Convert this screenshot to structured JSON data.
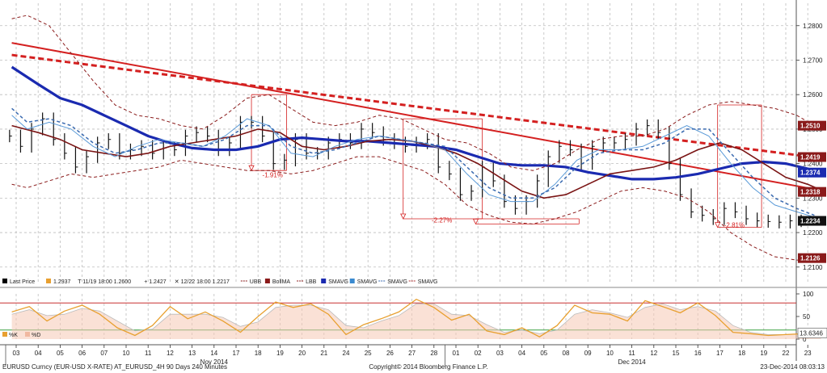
{
  "chart_data": {
    "type": "line",
    "footer": {
      "left": "EURUSD Curncy (EUR-USD X-RATE) AT_EURUSD_4H 90 Days 240 Minutes",
      "center": "Copyright© 2014 Bloomberg Finance L.P.",
      "right": "23-Dec-2014 08:03:13"
    },
    "legend": [
      {
        "label": "Last Price",
        "color": "#000000",
        "swatch": "box"
      },
      {
        "label": "1.2937",
        "color": "#e8a030",
        "swatch": "box"
      },
      {
        "label": "T 11/19 18:00 1.2600",
        "color": "#000000",
        "swatch": "text"
      },
      {
        "label": "+ 1.2427",
        "color": "#000000",
        "swatch": "text"
      },
      {
        "label": "✕ 12/22 18:00 1.2217",
        "color": "#000000",
        "swatch": "text"
      },
      {
        "label": "UBB",
        "color": "#8a1a1a",
        "swatch": "dash"
      },
      {
        "label": "BollMA",
        "color": "#8a1a1a",
        "swatch": "box"
      },
      {
        "label": "LBB",
        "color": "#8a1a1a",
        "swatch": "dash"
      },
      {
        "label": "SMAVG",
        "color": "#1a2ab0",
        "swatch": "box"
      },
      {
        "label": "SMAVG",
        "color": "#3a8ad0",
        "swatch": "box"
      },
      {
        "label": "SMAVG",
        "color": "#3a6ab0",
        "swatch": "dash"
      },
      {
        "label": "SMAVG",
        "color": "#b03030",
        "swatch": "dash"
      }
    ],
    "x_ticks": [
      "03",
      "04",
      "05",
      "06",
      "07",
      "10",
      "11",
      "12",
      "13",
      "14",
      "17",
      "18",
      "19",
      "20",
      "21",
      "24",
      "25",
      "26",
      "27",
      "28",
      "01",
      "02",
      "03",
      "04",
      "05",
      "08",
      "09",
      "10",
      "11",
      "12",
      "15",
      "16",
      "17",
      "18",
      "19",
      "22",
      "23"
    ],
    "x_month_labels": [
      {
        "text": "Nov 2014",
        "tick_index": 9
      },
      {
        "text": "Dec 2014",
        "tick_index": 28
      }
    ],
    "y_ticks": [
      "1.2800",
      "1.2700",
      "1.2600",
      "1.2500",
      "1.2400",
      "1.2300",
      "1.2200",
      "1.2100"
    ],
    "ylim": [
      1.2055,
      1.2865
    ],
    "price_tags": [
      {
        "text": "1.2510",
        "value": 1.251,
        "color": "#8a1a1a"
      },
      {
        "text": "1.2419",
        "value": 1.2419,
        "color": "#8a1a1a"
      },
      {
        "text": "1.2374",
        "value": 1.2374,
        "color": "#1a2ab0"
      },
      {
        "text": "1.2318",
        "value": 1.2318,
        "color": "#8a1a1a"
      },
      {
        "text": "1.2234",
        "value": 1.2234,
        "color": "#111111"
      },
      {
        "text": "1.2126",
        "value": 1.2126,
        "color": "#8a1a1a"
      }
    ],
    "annotations": [
      {
        "text": "-1.91%",
        "x": 12.3,
        "y": 1.2367
      },
      {
        "text": "-2.27%",
        "x": 20.0,
        "y": 1.2237
      },
      {
        "text": "-2.81%",
        "x": 33.3,
        "y": 1.2222
      }
    ],
    "measure_boxes": [
      {
        "x0": 10.7,
        "x1": 12.3,
        "y_top": 1.26,
        "y_bottom": 1.238
      },
      {
        "x0": 17.6,
        "x1": 21.2,
        "y_top": 1.253,
        "y_bottom": 1.224
      },
      {
        "x0": 20.9,
        "x1": 25.6,
        "y_top": 1.224,
        "y_bottom": 1.2225
      },
      {
        "x0": 31.9,
        "x1": 33.9,
        "y_top": 1.257,
        "y_bottom": 1.2215
      }
    ],
    "trendlines": [
      {
        "kind": "solid",
        "x": [
          -0.2,
          36.8
        ],
        "y": [
          1.275,
          1.232
        ],
        "color": "#d42020"
      },
      {
        "kind": "dashed",
        "x": [
          -0.2,
          36.7
        ],
        "y": [
          1.2715,
          1.2415
        ],
        "color": "#d42020"
      }
    ],
    "series": [
      {
        "kind": "ohlc",
        "color": "#111111",
        "x": [
          -0.3,
          0.2,
          0.7,
          1.2,
          1.7,
          2.2,
          2.7,
          3.2,
          3.7,
          4.2,
          4.7,
          5.2,
          5.7,
          6.2,
          6.7,
          7.2,
          7.7,
          8.2,
          8.7,
          9.2,
          9.7,
          10.2,
          10.7,
          11.2,
          11.7,
          12.2,
          12.7,
          13.2,
          13.7,
          14.2,
          14.7,
          15.2,
          15.7,
          16.2,
          16.7,
          17.2,
          17.7,
          18.2,
          18.7,
          19.2,
          19.7,
          20.2,
          20.7,
          21.2,
          21.7,
          22.2,
          22.7,
          23.2,
          23.7,
          24.2,
          24.7,
          25.2,
          25.7,
          26.2,
          26.7,
          27.2,
          27.7,
          28.2,
          28.7,
          29.2,
          29.7,
          30.2,
          30.7,
          31.2,
          31.7,
          32.2,
          32.7,
          33.2,
          33.7,
          34.2,
          34.7,
          35.2,
          35.7
        ],
        "y": [
          1.248,
          1.245,
          1.25,
          1.253,
          1.247,
          1.243,
          1.239,
          1.242,
          1.246,
          1.247,
          1.243,
          1.244,
          1.245,
          1.243,
          1.2445,
          1.244,
          1.248,
          1.249,
          1.248,
          1.244,
          1.246,
          1.252,
          1.252,
          1.248,
          1.24,
          1.241,
          1.247,
          1.243,
          1.243,
          1.246,
          1.247,
          1.246,
          1.25,
          1.249,
          1.247,
          1.246,
          1.245,
          1.246,
          1.247,
          1.239,
          1.237,
          1.231,
          1.232,
          1.239,
          1.235,
          1.229,
          1.227,
          1.229,
          1.235,
          1.242,
          1.245,
          1.244,
          1.24,
          1.245,
          1.246,
          1.246,
          1.247,
          1.25,
          1.251,
          1.249,
          1.24,
          1.231,
          1.226,
          1.225,
          1.224,
          1.227,
          1.226,
          1.224,
          1.2234,
          1.2232,
          1.223,
          1.2234,
          1.2234
        ]
      },
      {
        "kind": "line",
        "name": "",
        "color": "#1a2ab0",
        "width": 3.2,
        "x": [
          -0.2,
          1,
          2,
          3,
          4,
          5,
          6,
          7,
          8,
          9,
          10,
          11,
          12,
          13,
          14,
          15,
          16,
          17,
          18,
          19,
          20,
          21,
          22,
          23,
          24,
          25,
          26,
          27,
          28,
          29,
          30,
          31,
          32,
          33,
          34,
          35,
          36,
          36.6
        ],
        "y": [
          1.268,
          1.263,
          1.259,
          1.257,
          1.254,
          1.251,
          1.248,
          1.246,
          1.2445,
          1.244,
          1.244,
          1.245,
          1.247,
          1.2475,
          1.247,
          1.2465,
          1.2465,
          1.246,
          1.2455,
          1.245,
          1.244,
          1.242,
          1.24,
          1.2395,
          1.2395,
          1.239,
          1.2375,
          1.2365,
          1.2355,
          1.2355,
          1.236,
          1.237,
          1.2385,
          1.24,
          1.2405,
          1.24,
          1.2385,
          1.2374
        ]
      },
      {
        "kind": "line",
        "name": "",
        "color": "#7a1414",
        "width": 1.6,
        "x": [
          -0.2,
          1,
          2,
          3,
          4,
          5,
          6,
          7,
          8,
          9,
          10,
          11,
          12,
          13,
          14,
          15,
          16,
          17,
          18,
          19,
          20,
          21,
          22,
          23,
          24,
          25,
          26,
          27,
          28,
          29,
          30,
          31,
          32,
          33,
          34,
          35,
          36,
          36.8
        ],
        "y": [
          1.251,
          1.249,
          1.247,
          1.244,
          1.243,
          1.242,
          1.243,
          1.245,
          1.246,
          1.247,
          1.248,
          1.25,
          1.249,
          1.245,
          1.244,
          1.245,
          1.2465,
          1.247,
          1.2465,
          1.245,
          1.243,
          1.24,
          1.236,
          1.232,
          1.23,
          1.231,
          1.234,
          1.237,
          1.238,
          1.239,
          1.241,
          1.244,
          1.246,
          1.244,
          1.24,
          1.236,
          1.234,
          1.2318
        ]
      },
      {
        "kind": "dashed",
        "name": "",
        "color": "#8a1a1a",
        "width": 1,
        "x": [
          -0.2,
          0.5,
          1.5,
          2.5,
          3.5,
          4.5,
          5.5,
          6.5,
          7.5,
          8.5,
          9.5,
          10.5,
          11.5,
          12.5,
          13.5,
          14.5,
          15.5,
          16.5,
          17.5,
          18.5,
          19.5,
          20.5,
          21.5,
          22.5,
          23.5,
          24.5,
          25.5,
          26.5,
          27.5,
          28.5,
          29.5,
          30.5,
          31.5,
          32.5,
          33.5,
          34.5,
          35.5,
          36.3
        ],
        "y": [
          1.282,
          1.283,
          1.28,
          1.272,
          1.264,
          1.257,
          1.254,
          1.253,
          1.251,
          1.25,
          1.254,
          1.259,
          1.26,
          1.256,
          1.252,
          1.251,
          1.252,
          1.254,
          1.253,
          1.25,
          1.247,
          1.246,
          1.243,
          1.239,
          1.238,
          1.24,
          1.244,
          1.247,
          1.248,
          1.248,
          1.25,
          1.254,
          1.257,
          1.258,
          1.257,
          1.256,
          1.254,
          1.251
        ]
      },
      {
        "kind": "dashed",
        "name": "",
        "color": "#8a1a1a",
        "width": 1,
        "x": [
          -0.2,
          0.5,
          1.5,
          2.5,
          3.5,
          4.5,
          5.5,
          6.5,
          7.5,
          8.5,
          9.5,
          10.5,
          11.5,
          12.5,
          13.5,
          14.5,
          15.5,
          16.5,
          17.5,
          18.5,
          19.5,
          20.5,
          21.5,
          22.5,
          23.5,
          24.5,
          25.5,
          26.5,
          27.5,
          28.5,
          29.5,
          30.5,
          31.5,
          32.5,
          33.5,
          34.5,
          35.5,
          36.3
        ],
        "y": [
          1.234,
          1.233,
          1.235,
          1.237,
          1.236,
          1.237,
          1.238,
          1.239,
          1.241,
          1.24,
          1.239,
          1.238,
          1.238,
          1.237,
          1.238,
          1.24,
          1.242,
          1.242,
          1.24,
          1.238,
          1.234,
          1.228,
          1.225,
          1.223,
          1.2225,
          1.224,
          1.226,
          1.229,
          1.232,
          1.233,
          1.232,
          1.23,
          1.226,
          1.22,
          1.216,
          1.213,
          1.212,
          1.2126
        ]
      },
      {
        "kind": "line",
        "name": "",
        "color": "#5a9ad8",
        "width": 1,
        "x": [
          -0.2,
          0.5,
          1.5,
          2.5,
          3.5,
          4.5,
          5.5,
          6.5,
          7.5,
          8.5,
          9.5,
          10.5,
          11.5,
          12.5,
          13.5,
          14.5,
          15.5,
          16.5,
          17.5,
          18.5,
          19.5,
          20.5,
          21.5,
          22.5,
          23.5,
          24.5,
          25.5,
          26.5,
          27.5,
          28.5,
          29.5,
          30.5,
          31.5,
          32.5,
          33.5,
          34.5,
          35.5,
          36.3
        ],
        "y": [
          1.254,
          1.25,
          1.252,
          1.25,
          1.245,
          1.242,
          1.245,
          1.247,
          1.246,
          1.245,
          1.248,
          1.253,
          1.251,
          1.243,
          1.242,
          1.245,
          1.247,
          1.248,
          1.247,
          1.246,
          1.244,
          1.237,
          1.231,
          1.229,
          1.229,
          1.234,
          1.241,
          1.244,
          1.244,
          1.245,
          1.248,
          1.251,
          1.248,
          1.24,
          1.233,
          1.228,
          1.226,
          1.2245
        ]
      },
      {
        "kind": "dashed",
        "name": "",
        "color": "#3a6ab0",
        "width": 1.5,
        "x": [
          -0.2,
          0.5,
          1.5,
          2.5,
          3.5,
          4.5,
          5.5,
          6.5,
          7.5,
          8.5,
          9.5,
          10.5,
          11.5,
          12.5,
          13.5,
          14.5,
          15.5,
          16.5,
          17.5,
          18.5,
          19.5,
          20.5,
          21.5,
          22.5,
          23.5,
          24.5,
          25.5,
          26.5,
          27.5,
          28.5,
          29.5,
          30.5,
          31.5,
          32.5,
          33.5,
          34.5,
          35.5,
          36.3
        ],
        "y": [
          1.256,
          1.252,
          1.253,
          1.251,
          1.246,
          1.243,
          1.244,
          1.246,
          1.246,
          1.245,
          1.247,
          1.251,
          1.251,
          1.245,
          1.243,
          1.244,
          1.246,
          1.248,
          1.247,
          1.246,
          1.245,
          1.239,
          1.233,
          1.23,
          1.23,
          1.233,
          1.239,
          1.243,
          1.244,
          1.244,
          1.246,
          1.25,
          1.25,
          1.243,
          1.236,
          1.23,
          1.227,
          1.225
        ]
      }
    ],
    "sub_panel": {
      "y_ticks": [
        "100",
        "50",
        "0"
      ],
      "ylim": [
        0,
        100
      ],
      "upper_band": 80,
      "lower_band": 20,
      "legend": [
        {
          "label": "%K",
          "color": "#e8a030"
        },
        {
          "label": "%D",
          "color": "#f0b8a0"
        }
      ],
      "value_tag": {
        "text": "13.6346",
        "value": 13.6346
      },
      "k_line": {
        "color": "#e8a030",
        "x": [
          -0.2,
          0.6,
          1.4,
          2.2,
          3.0,
          3.8,
          4.6,
          5.4,
          6.2,
          7.0,
          7.8,
          8.6,
          9.4,
          10.2,
          11.0,
          11.8,
          12.6,
          13.4,
          14.2,
          15.0,
          15.8,
          16.6,
          17.4,
          18.2,
          19.0,
          19.8,
          20.6,
          21.4,
          22.2,
          23.0,
          23.8,
          24.6,
          25.4,
          26.2,
          27.0,
          27.8,
          28.6,
          29.4,
          30.2,
          31.0,
          31.8,
          32.6,
          33.4,
          34.2,
          35.0,
          35.8,
          36.6
        ],
        "y": [
          60,
          72,
          40,
          62,
          75,
          55,
          25,
          8,
          30,
          72,
          45,
          60,
          40,
          15,
          50,
          82,
          70,
          78,
          55,
          10,
          32,
          45,
          60,
          88,
          70,
          42,
          55,
          18,
          10,
          25,
          5,
          30,
          75,
          58,
          55,
          40,
          85,
          72,
          58,
          80,
          52,
          15,
          12,
          8,
          10,
          12,
          14
        ]
      },
      "d_line": {
        "x": [
          -0.2,
          0.6,
          1.4,
          2.2,
          3.0,
          3.8,
          4.6,
          5.4,
          6.2,
          7.0,
          7.8,
          8.6,
          9.4,
          10.2,
          11.0,
          11.8,
          12.6,
          13.4,
          14.2,
          15.0,
          15.8,
          16.6,
          17.4,
          18.2,
          19.0,
          19.8,
          20.6,
          21.4,
          22.2,
          23.0,
          23.8,
          24.6,
          25.4,
          26.2,
          27.0,
          27.8,
          28.6,
          29.4,
          30.2,
          31.0,
          31.8,
          32.6,
          33.4,
          34.2,
          35.0,
          35.8,
          36.6
        ],
        "y": [
          55,
          65,
          52,
          55,
          68,
          62,
          40,
          18,
          22,
          55,
          55,
          55,
          48,
          28,
          38,
          70,
          75,
          75,
          65,
          30,
          25,
          40,
          52,
          78,
          78,
          55,
          52,
          32,
          15,
          20,
          12,
          20,
          55,
          65,
          58,
          48,
          70,
          78,
          65,
          72,
          62,
          30,
          15,
          10,
          10,
          11,
          13
        ]
      }
    }
  }
}
